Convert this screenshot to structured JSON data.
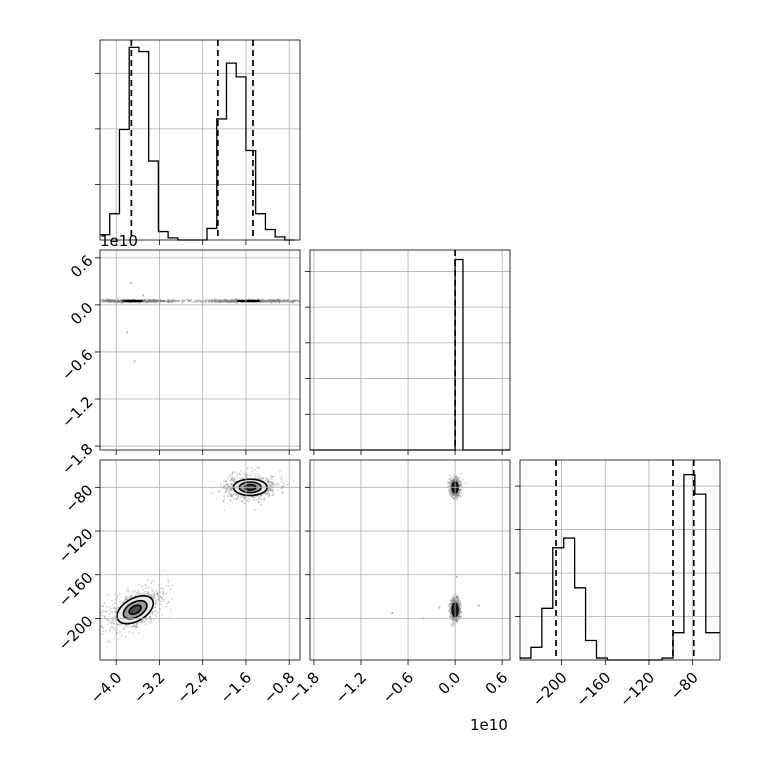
{
  "chart_data": {
    "type": "corner",
    "title": "",
    "show_grid": true,
    "colors": {
      "line": "#000000",
      "grid": "#b0b0b0",
      "contour_fill": "#555555",
      "background": "#ffffff"
    },
    "params": [
      {
        "range": [
          -4.3,
          -0.6
        ],
        "ticks": [
          -4.0,
          -3.2,
          -2.4,
          -1.6,
          -0.8
        ],
        "tick_labels": [
          "−4.0",
          "−3.2",
          "−2.4",
          "−1.6",
          "−0.8"
        ],
        "offset_label": ""
      },
      {
        "range": [
          -1.85,
          0.7
        ],
        "ticks": [
          -1.8,
          -1.2,
          -0.6,
          0.0,
          0.6
        ],
        "tick_labels": [
          "−1.8",
          "−1.2",
          "−0.6",
          "0.0",
          "0.6"
        ],
        "offset_label": "1e10"
      },
      {
        "range": [
          -238,
          -55
        ],
        "ticks": [
          -200,
          -160,
          -120,
          -80
        ],
        "tick_labels": [
          "−200",
          "−160",
          "−120",
          "−80"
        ],
        "offset_label": ""
      }
    ],
    "histograms": [
      {
        "param": 0,
        "bin_edges": [
          -4.3,
          -4.12,
          -3.94,
          -3.76,
          -3.58,
          -3.4,
          -3.22,
          -3.04,
          -2.86,
          -2.68,
          -2.5,
          -2.32,
          -2.14,
          -1.96,
          -1.78,
          -1.6,
          -1.42,
          -1.24,
          -1.06,
          -0.88,
          -0.7
        ],
        "counts": [
          5,
          25,
          105,
          183,
          179,
          75,
          8,
          2,
          0,
          0,
          0,
          11,
          115,
          168,
          155,
          85,
          25,
          10,
          3,
          0
        ],
        "ymax": 190,
        "quantiles": [
          -3.72,
          -2.12,
          -1.47
        ],
        "hidden_y_ticks": 3
      },
      {
        "param": 1,
        "bin_edges": [
          -1.85,
          0.0,
          0.1,
          0.7
        ],
        "counts": [
          0,
          100,
          0
        ],
        "ymax": 105,
        "quantiles": [
          0.0
        ],
        "hidden_y_ticks": 5
      },
      {
        "param": 2,
        "bin_edges": [
          -238,
          -228,
          -218,
          -208,
          -198,
          -188,
          -178,
          -168,
          -158,
          -148,
          -138,
          -128,
          -118,
          -108,
          -98,
          -88,
          -78,
          -68,
          -55
        ],
        "counts": [
          2,
          13,
          53,
          115,
          125,
          74,
          20,
          2,
          0,
          0,
          0,
          0,
          0,
          2,
          28,
          190,
          170,
          28
        ],
        "ymax": 205,
        "quantiles": [
          -205,
          -98,
          -79
        ],
        "hidden_y_ticks": 4
      }
    ],
    "scatter_2d": [
      {
        "x_param": 0,
        "y_param": 1,
        "blobs": [
          {
            "x": -3.7,
            "y": 0.05,
            "sx": 0.5,
            "sy": 0.01,
            "levels": [
              0.18,
              0.32
            ]
          },
          {
            "x": -1.55,
            "y": 0.05,
            "sx": 0.55,
            "sy": 0.01,
            "levels": [
              0.18,
              0.32
            ]
          }
        ],
        "outliers": [
          [
            -3.72,
            0.28
          ],
          [
            -3.8,
            -0.35
          ],
          [
            -3.66,
            -0.72
          ],
          [
            -3.5,
            0.12
          ]
        ]
      },
      {
        "x_param": 0,
        "y_param": 2,
        "blobs": [
          {
            "x": -3.65,
            "y": -192,
            "sx": 0.32,
            "sy": 9,
            "tilt": -30,
            "levels": [
              1.0,
              0.65,
              0.33
            ]
          },
          {
            "x": -1.52,
            "y": -80,
            "sx": 0.27,
            "sy": 6.5,
            "tilt": 0,
            "levels": [
              1.0,
              0.65,
              0.33
            ]
          }
        ]
      },
      {
        "x_param": 1,
        "y_param": 2,
        "blobs": [
          {
            "x": 0.0,
            "y": -80,
            "sx": 0.035,
            "sy": 4.5,
            "levels": [
              1.0
            ]
          },
          {
            "x": 0.0,
            "y": -192,
            "sx": 0.035,
            "sy": 5.5,
            "levels": [
              1.0
            ]
          }
        ],
        "outliers": [
          [
            -0.8,
            -195
          ],
          [
            -0.2,
            -190
          ],
          [
            0.3,
            -188
          ],
          [
            -0.4,
            -200
          ],
          [
            0.02,
            -162
          ]
        ]
      }
    ]
  }
}
